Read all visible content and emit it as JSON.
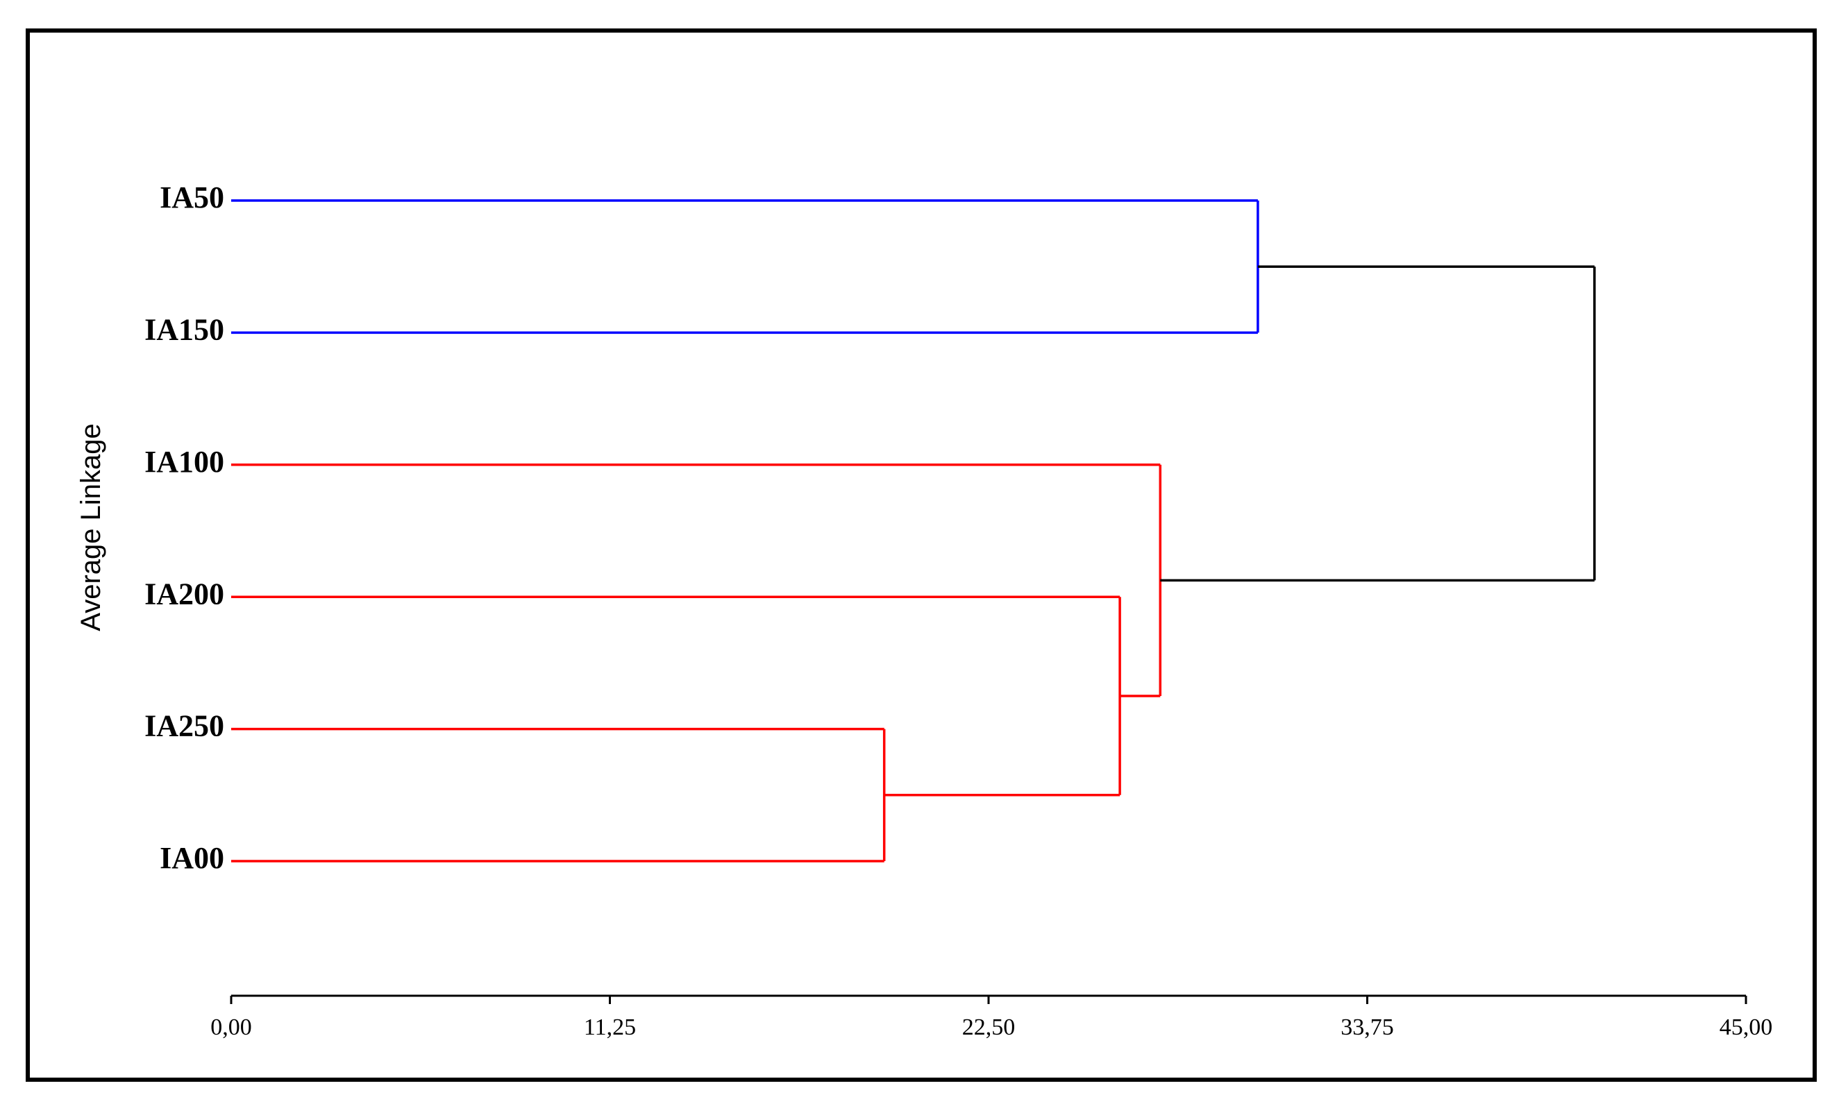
{
  "chart_data": {
    "type": "dendrogram",
    "y_label": "Average Linkage",
    "leaves": [
      "IA50",
      "IA150",
      "IA100",
      "IA200",
      "IA250",
      "IA00"
    ],
    "merges": [
      {
        "children": [
          4,
          5
        ],
        "height": 19.4,
        "color": "#ff0000"
      },
      {
        "children": [
          3,
          6
        ],
        "height": 26.4,
        "color": "#ff0000"
      },
      {
        "children": [
          2,
          7
        ],
        "height": 27.6,
        "color": "#ff0000"
      },
      {
        "children": [
          0,
          1
        ],
        "height": 30.5,
        "color": "#0000ff"
      },
      {
        "children": [
          9,
          8
        ],
        "height": 40.5,
        "color": "#000000"
      }
    ],
    "xlim": [
      0,
      45
    ],
    "xticks": [
      {
        "value": 0,
        "label": "0,00"
      },
      {
        "value": 11.25,
        "label": "11,25"
      },
      {
        "value": 22.5,
        "label": "22,50"
      },
      {
        "value": 33.75,
        "label": "33,75"
      },
      {
        "value": 45,
        "label": "45,00"
      }
    ]
  }
}
